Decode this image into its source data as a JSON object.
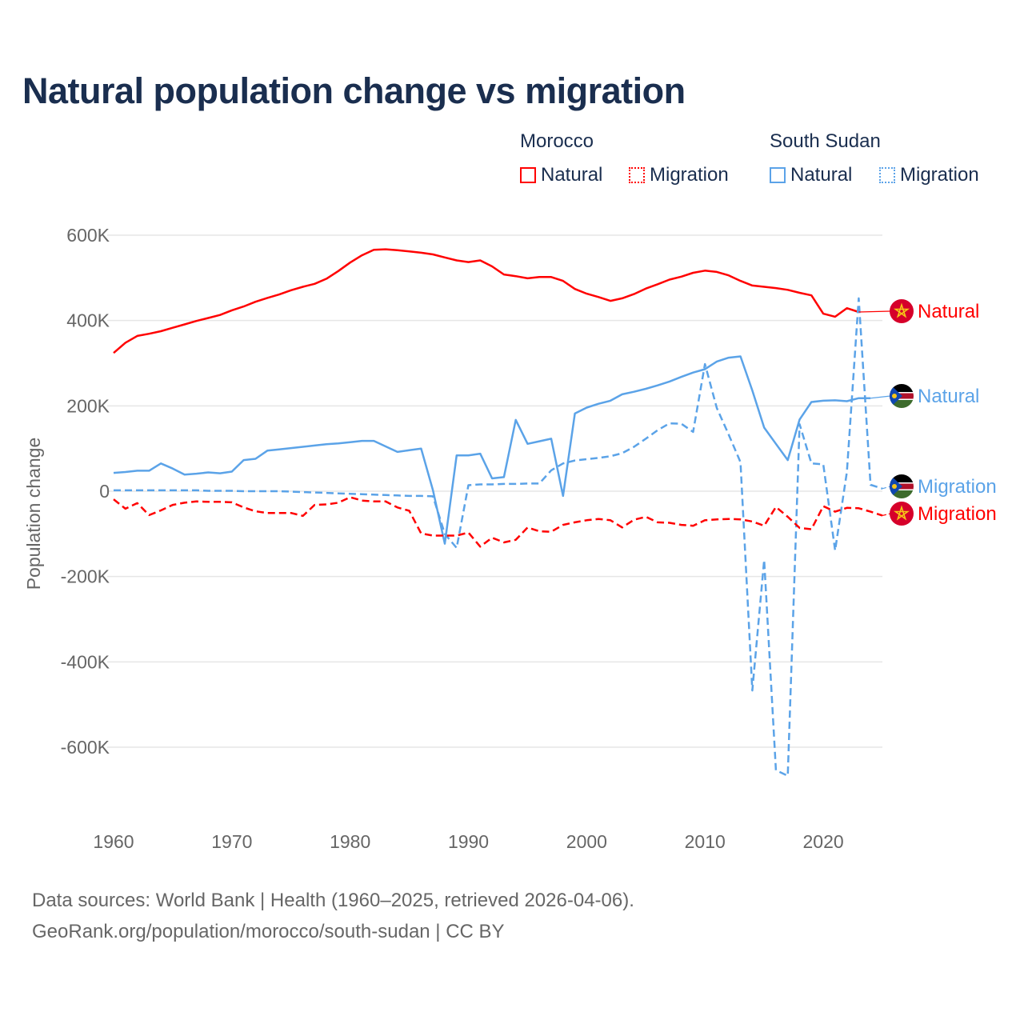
{
  "chart_data": {
    "type": "line",
    "title": "Natural population change vs migration",
    "ylabel": "Population change",
    "xlabel": "",
    "xlim": [
      1960,
      2025
    ],
    "ylim": [
      -700000,
      620000
    ],
    "x_ticks": [
      1960,
      1970,
      1980,
      1990,
      2000,
      2010,
      2020
    ],
    "x_tick_labels": [
      "1960",
      "1970",
      "1980",
      "1990",
      "2000",
      "2010",
      "2020"
    ],
    "y_ticks": [
      600000,
      400000,
      200000,
      0,
      -200000,
      -400000,
      -600000
    ],
    "y_tick_labels": [
      "600K",
      "400K",
      "200K",
      "0",
      "-200K",
      "-400K",
      "-600K"
    ],
    "grid": true,
    "legend": {
      "placement": "top-right",
      "groups": [
        {
          "name": "Morocco",
          "items": [
            "Natural",
            "Migration"
          ]
        },
        {
          "name": "South Sudan",
          "items": [
            "Natural",
            "Migration"
          ]
        }
      ]
    },
    "series": [
      {
        "name": "Morocco Natural",
        "country": "Morocco",
        "kind": "Natural",
        "color": "#ff0000",
        "dashed": false,
        "end_label": "Natural",
        "start_year": 1960,
        "values_k": [
          324,
          348,
          364,
          369,
          375,
          383,
          391,
          399,
          406,
          413,
          424,
          433,
          444,
          453,
          461,
          471,
          479,
          486,
          498,
          516,
          536,
          553,
          566,
          567,
          565,
          562,
          559,
          555,
          548,
          541,
          537,
          541,
          527,
          508,
          504,
          499,
          502,
          502,
          493,
          474,
          463,
          455,
          446,
          452,
          462,
          475,
          485,
          496,
          503,
          512,
          517,
          514,
          506,
          493,
          482,
          479,
          476,
          472,
          465,
          459,
          416,
          409,
          429,
          420
        ]
      },
      {
        "name": "South Sudan Natural",
        "country": "South Sudan",
        "kind": "Natural",
        "color": "#5ba3e8",
        "dashed": false,
        "end_label": "Natural",
        "start_year": 1960,
        "values_k": [
          43,
          45,
          48,
          48,
          65,
          53,
          39,
          41,
          44,
          42,
          46,
          73,
          76,
          95,
          98,
          101,
          104,
          107,
          110,
          112,
          115,
          118,
          118,
          105,
          92,
          96,
          100,
          2,
          -123,
          84,
          84,
          88,
          30,
          33,
          167,
          111,
          117,
          123,
          -11,
          182,
          196,
          205,
          212,
          227,
          233,
          240,
          248,
          257,
          268,
          278,
          286,
          304,
          313,
          316,
          236,
          149,
          111,
          73,
          168,
          209,
          212,
          213,
          211,
          218,
          218
        ]
      },
      {
        "name": "South Sudan Migration",
        "country": "South Sudan",
        "kind": "Migration",
        "color": "#5ba3e8",
        "dashed": true,
        "end_label": "Migration",
        "start_year": 1960,
        "values_k": [
          2,
          2,
          2,
          2,
          2,
          2,
          2,
          2,
          1,
          1,
          1,
          0,
          0,
          0,
          0,
          -1,
          -2,
          -3,
          -4,
          -5,
          -6,
          -7,
          -8,
          -9,
          -10,
          -11,
          -11,
          -12,
          -100,
          -133,
          14,
          16,
          16,
          17,
          17,
          18,
          18,
          49,
          65,
          72,
          75,
          78,
          82,
          89,
          104,
          123,
          143,
          159,
          158,
          139,
          298,
          195,
          133,
          68,
          -467,
          -161,
          -654,
          -667,
          157,
          65,
          63,
          -139,
          45,
          452,
          15,
          6
        ]
      },
      {
        "name": "Morocco Migration",
        "country": "Morocco",
        "kind": "Migration",
        "color": "#ff0000",
        "dashed": true,
        "end_label": "Migration",
        "start_year": 1960,
        "values_k": [
          -19,
          -41,
          -28,
          -56,
          -45,
          -32,
          -27,
          -24,
          -25,
          -25,
          -26,
          -38,
          -47,
          -51,
          -51,
          -51,
          -58,
          -32,
          -31,
          -27,
          -14,
          -22,
          -24,
          -24,
          -38,
          -46,
          -99,
          -104,
          -104,
          -104,
          -97,
          -130,
          -109,
          -120,
          -114,
          -85,
          -94,
          -95,
          -79,
          -73,
          -68,
          -65,
          -68,
          -85,
          -67,
          -60,
          -73,
          -74,
          -79,
          -81,
          -68,
          -66,
          -65,
          -66,
          -71,
          -81,
          -37,
          -60,
          -86,
          -89,
          -35,
          -48,
          -39,
          -40,
          -48,
          -57
        ]
      }
    ]
  },
  "legend_labels": {
    "morocco": "Morocco",
    "south_sudan": "South Sudan",
    "natural": "Natural",
    "migration": "Migration"
  },
  "footer": {
    "line1": "Data sources: World Bank | Health (1960–2025, retrieved 2026-04-06).",
    "line2": "GeoRank.org/population/morocco/south-sudan | CC BY"
  }
}
